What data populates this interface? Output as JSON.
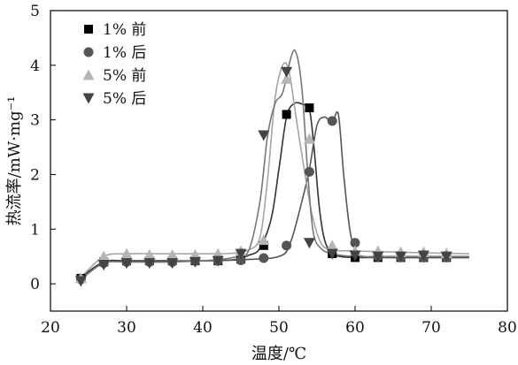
{
  "chart_data": {
    "type": "line",
    "xlabel": "温度/℃",
    "ylabel": "热流率/mW·mg⁻¹",
    "xlim": [
      20,
      80
    ],
    "ylim": [
      -0.5,
      5
    ],
    "xticks": [
      20,
      30,
      40,
      50,
      60,
      70,
      80
    ],
    "yticks": [
      0,
      1,
      2,
      3,
      4,
      5
    ],
    "grid": false,
    "legend_position": "top-left",
    "series": [
      {
        "name": "1% 前",
        "marker": "square",
        "color": "#000000",
        "line_color": "#333333",
        "curve": [
          [
            24,
            0.12
          ],
          [
            27,
            0.4
          ],
          [
            30,
            0.42
          ],
          [
            35,
            0.42
          ],
          [
            40,
            0.42
          ],
          [
            44,
            0.44
          ],
          [
            46,
            0.52
          ],
          [
            47.5,
            0.65
          ],
          [
            49,
            1.2
          ],
          [
            50,
            2.1
          ],
          [
            51,
            3.05
          ],
          [
            52,
            3.3
          ],
          [
            53.2,
            3.28
          ],
          [
            54,
            3.2
          ],
          [
            54.6,
            2.5
          ],
          [
            55.3,
            1.4
          ],
          [
            56,
            0.8
          ],
          [
            57,
            0.55
          ],
          [
            58,
            0.5
          ],
          [
            60,
            0.48
          ],
          [
            65,
            0.48
          ],
          [
            75,
            0.48
          ]
        ],
        "markers": [
          [
            24,
            0.1
          ],
          [
            27,
            0.4
          ],
          [
            30,
            0.42
          ],
          [
            33,
            0.42
          ],
          [
            36,
            0.42
          ],
          [
            39,
            0.42
          ],
          [
            42,
            0.42
          ],
          [
            45,
            0.45
          ],
          [
            48,
            0.7
          ],
          [
            51,
            3.1
          ],
          [
            54,
            3.22
          ],
          [
            57,
            0.55
          ],
          [
            60,
            0.48
          ],
          [
            63,
            0.48
          ],
          [
            66,
            0.48
          ],
          [
            69,
            0.48
          ],
          [
            72,
            0.48
          ]
        ]
      },
      {
        "name": "1% 后",
        "marker": "circle",
        "color": "#555555",
        "line_color": "#555555",
        "curve": [
          [
            24,
            0.1
          ],
          [
            27,
            0.38
          ],
          [
            30,
            0.4
          ],
          [
            35,
            0.4
          ],
          [
            40,
            0.42
          ],
          [
            45,
            0.44
          ],
          [
            50,
            0.5
          ],
          [
            51.5,
            0.75
          ],
          [
            53,
            1.5
          ],
          [
            54,
            2.1
          ],
          [
            55,
            2.9
          ],
          [
            56,
            3.05
          ],
          [
            57,
            2.95
          ],
          [
            57.8,
            3.1
          ],
          [
            58.5,
            2.0
          ],
          [
            59.3,
            1.0
          ],
          [
            60,
            0.65
          ],
          [
            61,
            0.5
          ],
          [
            65,
            0.48
          ],
          [
            75,
            0.48
          ]
        ],
        "markers": [
          [
            24,
            0.08
          ],
          [
            27,
            0.38
          ],
          [
            30,
            0.4
          ],
          [
            33,
            0.4
          ],
          [
            36,
            0.4
          ],
          [
            39,
            0.42
          ],
          [
            42,
            0.42
          ],
          [
            45,
            0.43
          ],
          [
            48,
            0.47
          ],
          [
            51,
            0.7
          ],
          [
            54,
            2.05
          ],
          [
            57,
            2.98
          ],
          [
            60,
            0.75
          ],
          [
            63,
            0.5
          ],
          [
            66,
            0.48
          ],
          [
            69,
            0.48
          ],
          [
            72,
            0.48
          ]
        ]
      },
      {
        "name": "5% 前",
        "marker": "triangle-up",
        "color": "#b5b5b5",
        "line_color": "#a5a5a5",
        "curve": [
          [
            24,
            0.12
          ],
          [
            27,
            0.5
          ],
          [
            30,
            0.55
          ],
          [
            35,
            0.55
          ],
          [
            40,
            0.55
          ],
          [
            44,
            0.56
          ],
          [
            46,
            0.62
          ],
          [
            47.5,
            0.85
          ],
          [
            48.5,
            1.9
          ],
          [
            49.5,
            3.4
          ],
          [
            50.5,
            4.0
          ],
          [
            51.3,
            3.9
          ],
          [
            52.3,
            3.0
          ],
          [
            53.2,
            2.2
          ],
          [
            54.3,
            1.3
          ],
          [
            55.5,
            0.75
          ],
          [
            57,
            0.62
          ],
          [
            60,
            0.6
          ],
          [
            65,
            0.58
          ],
          [
            75,
            0.55
          ]
        ],
        "markers": [
          [
            24,
            0.1
          ],
          [
            27,
            0.5
          ],
          [
            30,
            0.55
          ],
          [
            33,
            0.53
          ],
          [
            36,
            0.53
          ],
          [
            39,
            0.53
          ],
          [
            42,
            0.55
          ],
          [
            45,
            0.6
          ],
          [
            48,
            0.8
          ],
          [
            51,
            3.75
          ],
          [
            54,
            2.65
          ],
          [
            57,
            0.7
          ],
          [
            60,
            0.6
          ],
          [
            63,
            0.6
          ],
          [
            66,
            0.58
          ],
          [
            69,
            0.58
          ],
          [
            72,
            0.56
          ]
        ]
      },
      {
        "name": "5% 后",
        "marker": "triangle-down",
        "color": "#444444",
        "line_color": "#777777",
        "curve": [
          [
            24,
            0.08
          ],
          [
            27,
            0.38
          ],
          [
            30,
            0.4
          ],
          [
            35,
            0.4
          ],
          [
            40,
            0.42
          ],
          [
            44,
            0.48
          ],
          [
            46,
            0.6
          ],
          [
            47.5,
            1.5
          ],
          [
            48.5,
            2.7
          ],
          [
            49.5,
            3.3
          ],
          [
            50.5,
            3.5
          ],
          [
            51.5,
            4.1
          ],
          [
            52.2,
            4.25
          ],
          [
            53.0,
            3.6
          ],
          [
            53.8,
            2.0
          ],
          [
            54.5,
            0.95
          ],
          [
            55.5,
            0.65
          ],
          [
            57,
            0.55
          ],
          [
            60,
            0.5
          ],
          [
            65,
            0.5
          ],
          [
            75,
            0.5
          ]
        ],
        "markers": [
          [
            24,
            0.05
          ],
          [
            27,
            0.35
          ],
          [
            30,
            0.38
          ],
          [
            33,
            0.38
          ],
          [
            36,
            0.38
          ],
          [
            39,
            0.4
          ],
          [
            42,
            0.42
          ],
          [
            45,
            0.55
          ],
          [
            48,
            2.72
          ],
          [
            51,
            3.88
          ],
          [
            54,
            0.75
          ],
          [
            57,
            0.55
          ],
          [
            60,
            0.52
          ],
          [
            63,
            0.5
          ],
          [
            66,
            0.5
          ],
          [
            69,
            0.52
          ],
          [
            72,
            0.5
          ]
        ]
      }
    ]
  }
}
